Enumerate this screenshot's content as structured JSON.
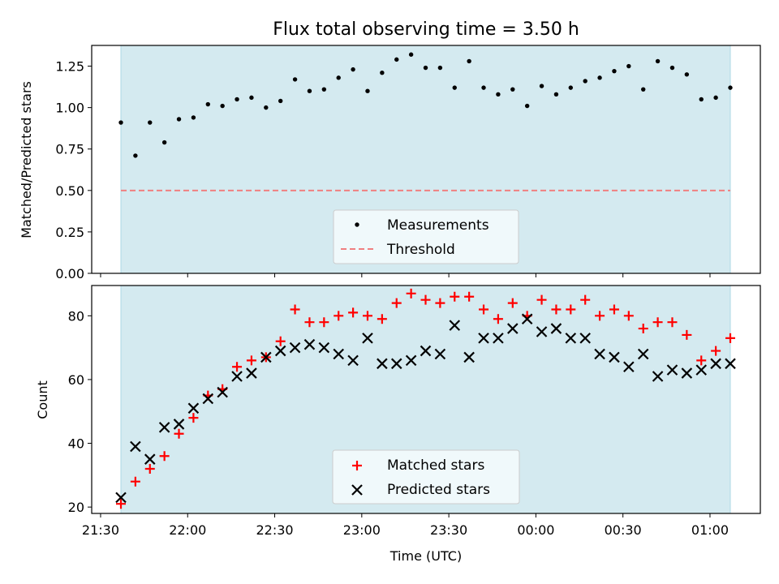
{
  "title": "Flux total observing time = 3.50 h",
  "chart_data": [
    {
      "type": "scatter",
      "ylabel": "Matched/Predicted stars",
      "ylim": [
        0.0,
        1.375
      ],
      "yticks": [
        0.0,
        0.25,
        0.5,
        0.75,
        1.0,
        1.25
      ],
      "ytick_labels": [
        "0.00",
        "0.25",
        "0.50",
        "0.75",
        "1.00",
        "1.25"
      ],
      "threshold": 0.5,
      "legend": {
        "placement": "lower-center",
        "entries": [
          "Measurements",
          "Threshold"
        ]
      },
      "series": [
        {
          "name": "Measurements",
          "x": [
            0,
            5,
            10,
            15,
            20,
            25,
            30,
            35,
            40,
            45,
            50,
            55,
            60,
            65,
            70,
            75,
            80,
            85,
            90,
            95,
            100,
            105,
            110,
            115,
            120,
            125,
            130,
            135,
            140,
            145,
            150,
            155,
            160,
            165,
            170,
            175,
            180,
            185,
            190,
            195,
            200,
            205,
            210
          ],
          "values": [
            0.91,
            0.71,
            0.91,
            0.79,
            0.93,
            0.94,
            1.02,
            1.01,
            1.05,
            1.06,
            1.0,
            1.04,
            1.17,
            1.1,
            1.11,
            1.18,
            1.23,
            1.1,
            1.21,
            1.29,
            1.32,
            1.24,
            1.24,
            1.12,
            1.28,
            1.12,
            1.08,
            1.11,
            1.01,
            1.13,
            1.08,
            1.12,
            1.16,
            1.18,
            1.22,
            1.25,
            1.11,
            1.28,
            1.24,
            1.2,
            1.05,
            1.06,
            1.12
          ]
        }
      ]
    },
    {
      "type": "scatter",
      "xlabel": "Time (UTC)",
      "ylabel": "Count",
      "ylim": [
        18,
        89.5
      ],
      "yticks": [
        20,
        40,
        60,
        80
      ],
      "ytick_labels": [
        "20",
        "40",
        "60",
        "80"
      ],
      "xtick_labels": [
        "21:30",
        "22:00",
        "22:30",
        "23:00",
        "23:30",
        "00:00",
        "00:30",
        "01:00"
      ],
      "legend": {
        "placement": "lower-center",
        "entries": [
          "Matched stars",
          "Predicted stars"
        ]
      },
      "series": [
        {
          "name": "Matched stars",
          "x": [
            0,
            5,
            10,
            15,
            20,
            25,
            30,
            35,
            40,
            45,
            50,
            55,
            60,
            65,
            70,
            75,
            80,
            85,
            90,
            95,
            100,
            105,
            110,
            115,
            120,
            125,
            130,
            135,
            140,
            145,
            150,
            155,
            160,
            165,
            170,
            175,
            180,
            185,
            190,
            195,
            200,
            205,
            210
          ],
          "values": [
            21,
            28,
            32,
            36,
            43,
            48,
            55,
            57,
            64,
            66,
            67,
            72,
            82,
            78,
            78,
            80,
            81,
            80,
            79,
            84,
            87,
            85,
            84,
            86,
            86,
            82,
            79,
            84,
            80,
            85,
            82,
            82,
            85,
            80,
            82,
            80,
            76,
            78,
            78,
            74,
            66,
            69,
            73
          ]
        },
        {
          "name": "Predicted stars",
          "x": [
            0,
            5,
            10,
            15,
            20,
            25,
            30,
            35,
            40,
            45,
            50,
            55,
            60,
            65,
            70,
            75,
            80,
            85,
            90,
            95,
            100,
            105,
            110,
            115,
            120,
            125,
            130,
            135,
            140,
            145,
            150,
            155,
            160,
            165,
            170,
            175,
            180,
            185,
            190,
            195,
            200,
            205,
            210
          ],
          "values": [
            23,
            39,
            35,
            45,
            46,
            51,
            54,
            56,
            61,
            62,
            67,
            69,
            70,
            71,
            70,
            68,
            66,
            73,
            65,
            65,
            66,
            69,
            68,
            77,
            67,
            73,
            73,
            76,
            79,
            75,
            76,
            73,
            73,
            68,
            67,
            64,
            68,
            61,
            63,
            62,
            63,
            65,
            65
          ]
        }
      ]
    }
  ],
  "time_axis": {
    "start_label": "21:37",
    "end_label": "01:07",
    "tick_offsets_min": [
      -7,
      23,
      53,
      83,
      113,
      143,
      173,
      203
    ]
  },
  "colors": {
    "span": "#d4eaf0",
    "span_edge": "#add8e6",
    "measurement": "#000000",
    "threshold": "#f08080",
    "matched": "#ff0000",
    "predicted": "#000000"
  }
}
